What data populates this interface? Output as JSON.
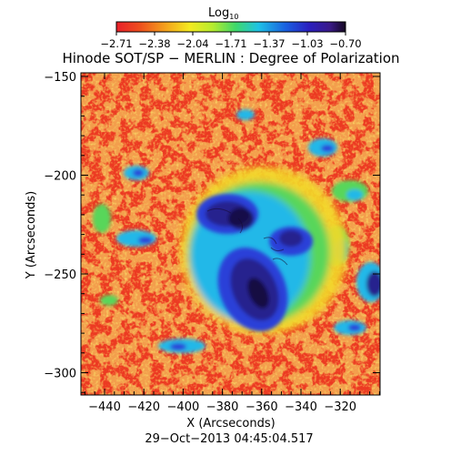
{
  "colorbar": {
    "label_main": "Log",
    "label_sub": "10",
    "ticks": [
      "−2.71",
      "−2.38",
      "−2.04",
      "−1.71",
      "−1.37",
      "−1.03",
      "−0.70"
    ],
    "colors": [
      "#e8202a",
      "#ee4d1e",
      "#f4a61d",
      "#f4ea20",
      "#b6ec2e",
      "#3fd96a",
      "#1ec2e6",
      "#1a5fe0",
      "#2a1fbf",
      "#3a1a8a",
      "#140720"
    ]
  },
  "title": "Hinode SOT/SP − MERLIN : Degree of Polarization",
  "x_axis": {
    "label": "X (Arcseconds)",
    "ticks": [
      "−440",
      "−420",
      "−400",
      "−380",
      "−360",
      "−340",
      "−320"
    ]
  },
  "y_axis": {
    "label": "Y (Arcseconds)",
    "ticks": [
      "−150",
      "−200",
      "−250",
      "−300"
    ]
  },
  "timestamp": "29−Oct−2013 04:45:04.517",
  "map_colors": {
    "background": "#ec3a22",
    "orange": "#f57f1e",
    "yellow": "#f3d928",
    "green": "#58d65a",
    "cyan": "#20b8e8",
    "blue": "#2a3fd8",
    "indigo": "#26208e",
    "dark": "#150a30"
  }
}
